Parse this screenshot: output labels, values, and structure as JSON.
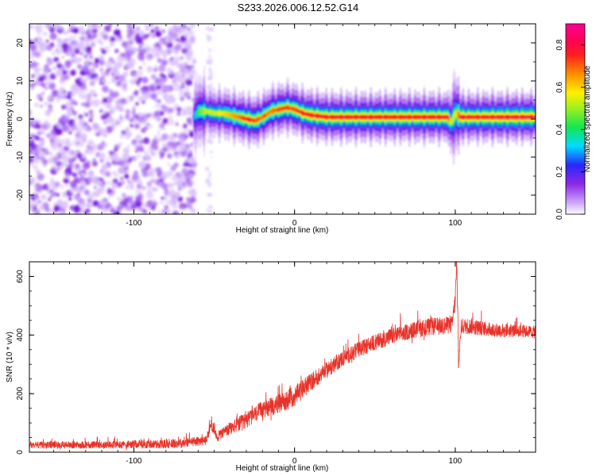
{
  "title": "S233.2026.006.12.52.G14",
  "colors": {
    "signal_line": "#e8332a",
    "noise_fill": "#8a2be2",
    "axis": "#000000",
    "background": "#ffffff"
  },
  "chart_data": [
    {
      "type": "heatmap",
      "name": "spectrogram",
      "xlabel": "Height of straight line (km)",
      "ylabel": "Frequency (Hz)",
      "xlim": [
        -165,
        150
      ],
      "ylim": [
        -25,
        25
      ],
      "xticks": [
        -100,
        0,
        100
      ],
      "yticks": [
        -20,
        -10,
        0,
        10,
        20
      ],
      "noise_region_x": [
        -165,
        -62
      ],
      "ridge": {
        "x": [
          -63,
          -60,
          -55,
          -50,
          -45,
          -40,
          -35,
          -30,
          -25,
          -20,
          -15,
          -10,
          -5,
          0,
          5,
          10,
          20,
          40,
          60,
          80,
          95,
          97,
          100,
          103,
          110,
          130,
          150
        ],
        "freq": [
          0.5,
          2.0,
          2.0,
          1.5,
          1.5,
          1.0,
          0.5,
          0.0,
          -0.5,
          0.5,
          2.0,
          2.5,
          3.0,
          2.5,
          1.5,
          1.0,
          0.5,
          0.5,
          0.5,
          0.5,
          0.5,
          -1.0,
          1.5,
          0.5,
          0.5,
          0.5,
          0.5
        ],
        "amplitude": [
          0.3,
          0.5,
          0.6,
          0.6,
          0.65,
          0.7,
          0.75,
          0.85,
          0.8,
          0.75,
          0.75,
          0.8,
          0.8,
          0.8,
          0.85,
          0.85,
          0.85,
          0.85,
          0.85,
          0.85,
          0.85,
          0.6,
          0.6,
          0.9,
          0.85,
          0.9,
          0.9
        ]
      },
      "colorbar": {
        "label": "Normalized spectral amplitude",
        "range": [
          0,
          0.9
        ],
        "ticks": [
          "0.0",
          "0.2",
          "0.4",
          "0.6",
          "0.8"
        ],
        "tick_values": [
          0.0,
          0.2,
          0.4,
          0.6,
          0.8
        ]
      }
    },
    {
      "type": "line",
      "name": "snr",
      "xlabel": "Height of straight line (km)",
      "ylabel": "SNR (10 * v/v)",
      "xlim": [
        -165,
        150
      ],
      "ylim": [
        0,
        650
      ],
      "xticks": [
        -100,
        0,
        100
      ],
      "yticks": [
        0,
        200,
        400,
        600
      ],
      "series": [
        {
          "name": "SNR",
          "x": [
            -165,
            -120,
            -80,
            -65,
            -55,
            -52,
            -48,
            -40,
            -30,
            -20,
            -10,
            0,
            10,
            20,
            30,
            40,
            50,
            60,
            70,
            80,
            90,
            98,
            100,
            101,
            102,
            104,
            110,
            120,
            130,
            140,
            150
          ],
          "values": [
            25,
            25,
            28,
            35,
            40,
            95,
            55,
            80,
            110,
            145,
            165,
            190,
            240,
            280,
            320,
            350,
            375,
            395,
            410,
            425,
            430,
            435,
            520,
            660,
            310,
            430,
            430,
            420,
            415,
            415,
            410
          ],
          "noise_amplitude": [
            20,
            20,
            25,
            25,
            25,
            30,
            30,
            40,
            45,
            50,
            55,
            60,
            50,
            45,
            45,
            45,
            45,
            45,
            45,
            50,
            50,
            50,
            50,
            50,
            50,
            45,
            45,
            40,
            40,
            35,
            35
          ]
        }
      ]
    }
  ]
}
